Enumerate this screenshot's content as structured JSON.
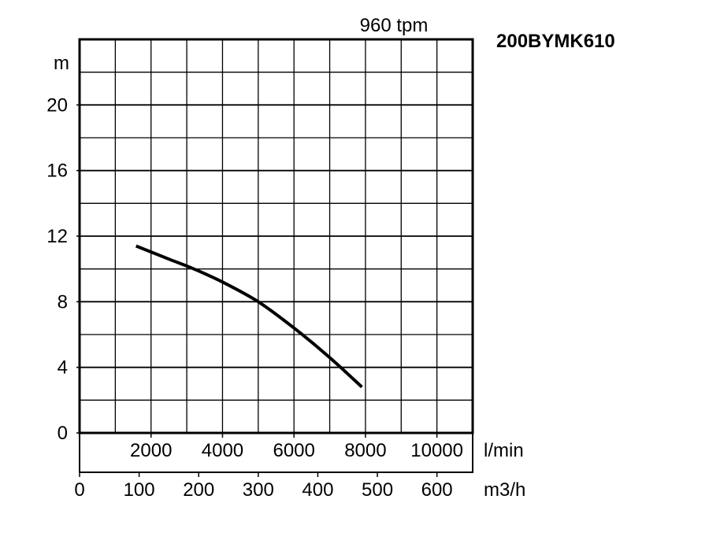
{
  "chart_data": {
    "type": "line",
    "title": "200BYMK610",
    "subtitle": "960 tpm",
    "ylabel": "m",
    "xlabel": "l/min",
    "x2label": "m3/h",
    "ylim": [
      0,
      24
    ],
    "xlim": [
      0,
      11000
    ],
    "x2lim": [
      0,
      660
    ],
    "yticks": [
      0,
      4,
      8,
      12,
      16,
      20
    ],
    "xticks": [
      2000,
      4000,
      6000,
      8000,
      10000
    ],
    "x2ticks": [
      0,
      100,
      200,
      300,
      400,
      500,
      600
    ],
    "grid": true,
    "series": [
      {
        "x": [
          1580,
          2500,
          3200,
          4000,
          5000,
          6000,
          7000,
          7900
        ],
        "y": [
          11.4,
          10.6,
          10.0,
          9.2,
          8.0,
          6.4,
          4.6,
          2.8
        ]
      }
    ]
  }
}
